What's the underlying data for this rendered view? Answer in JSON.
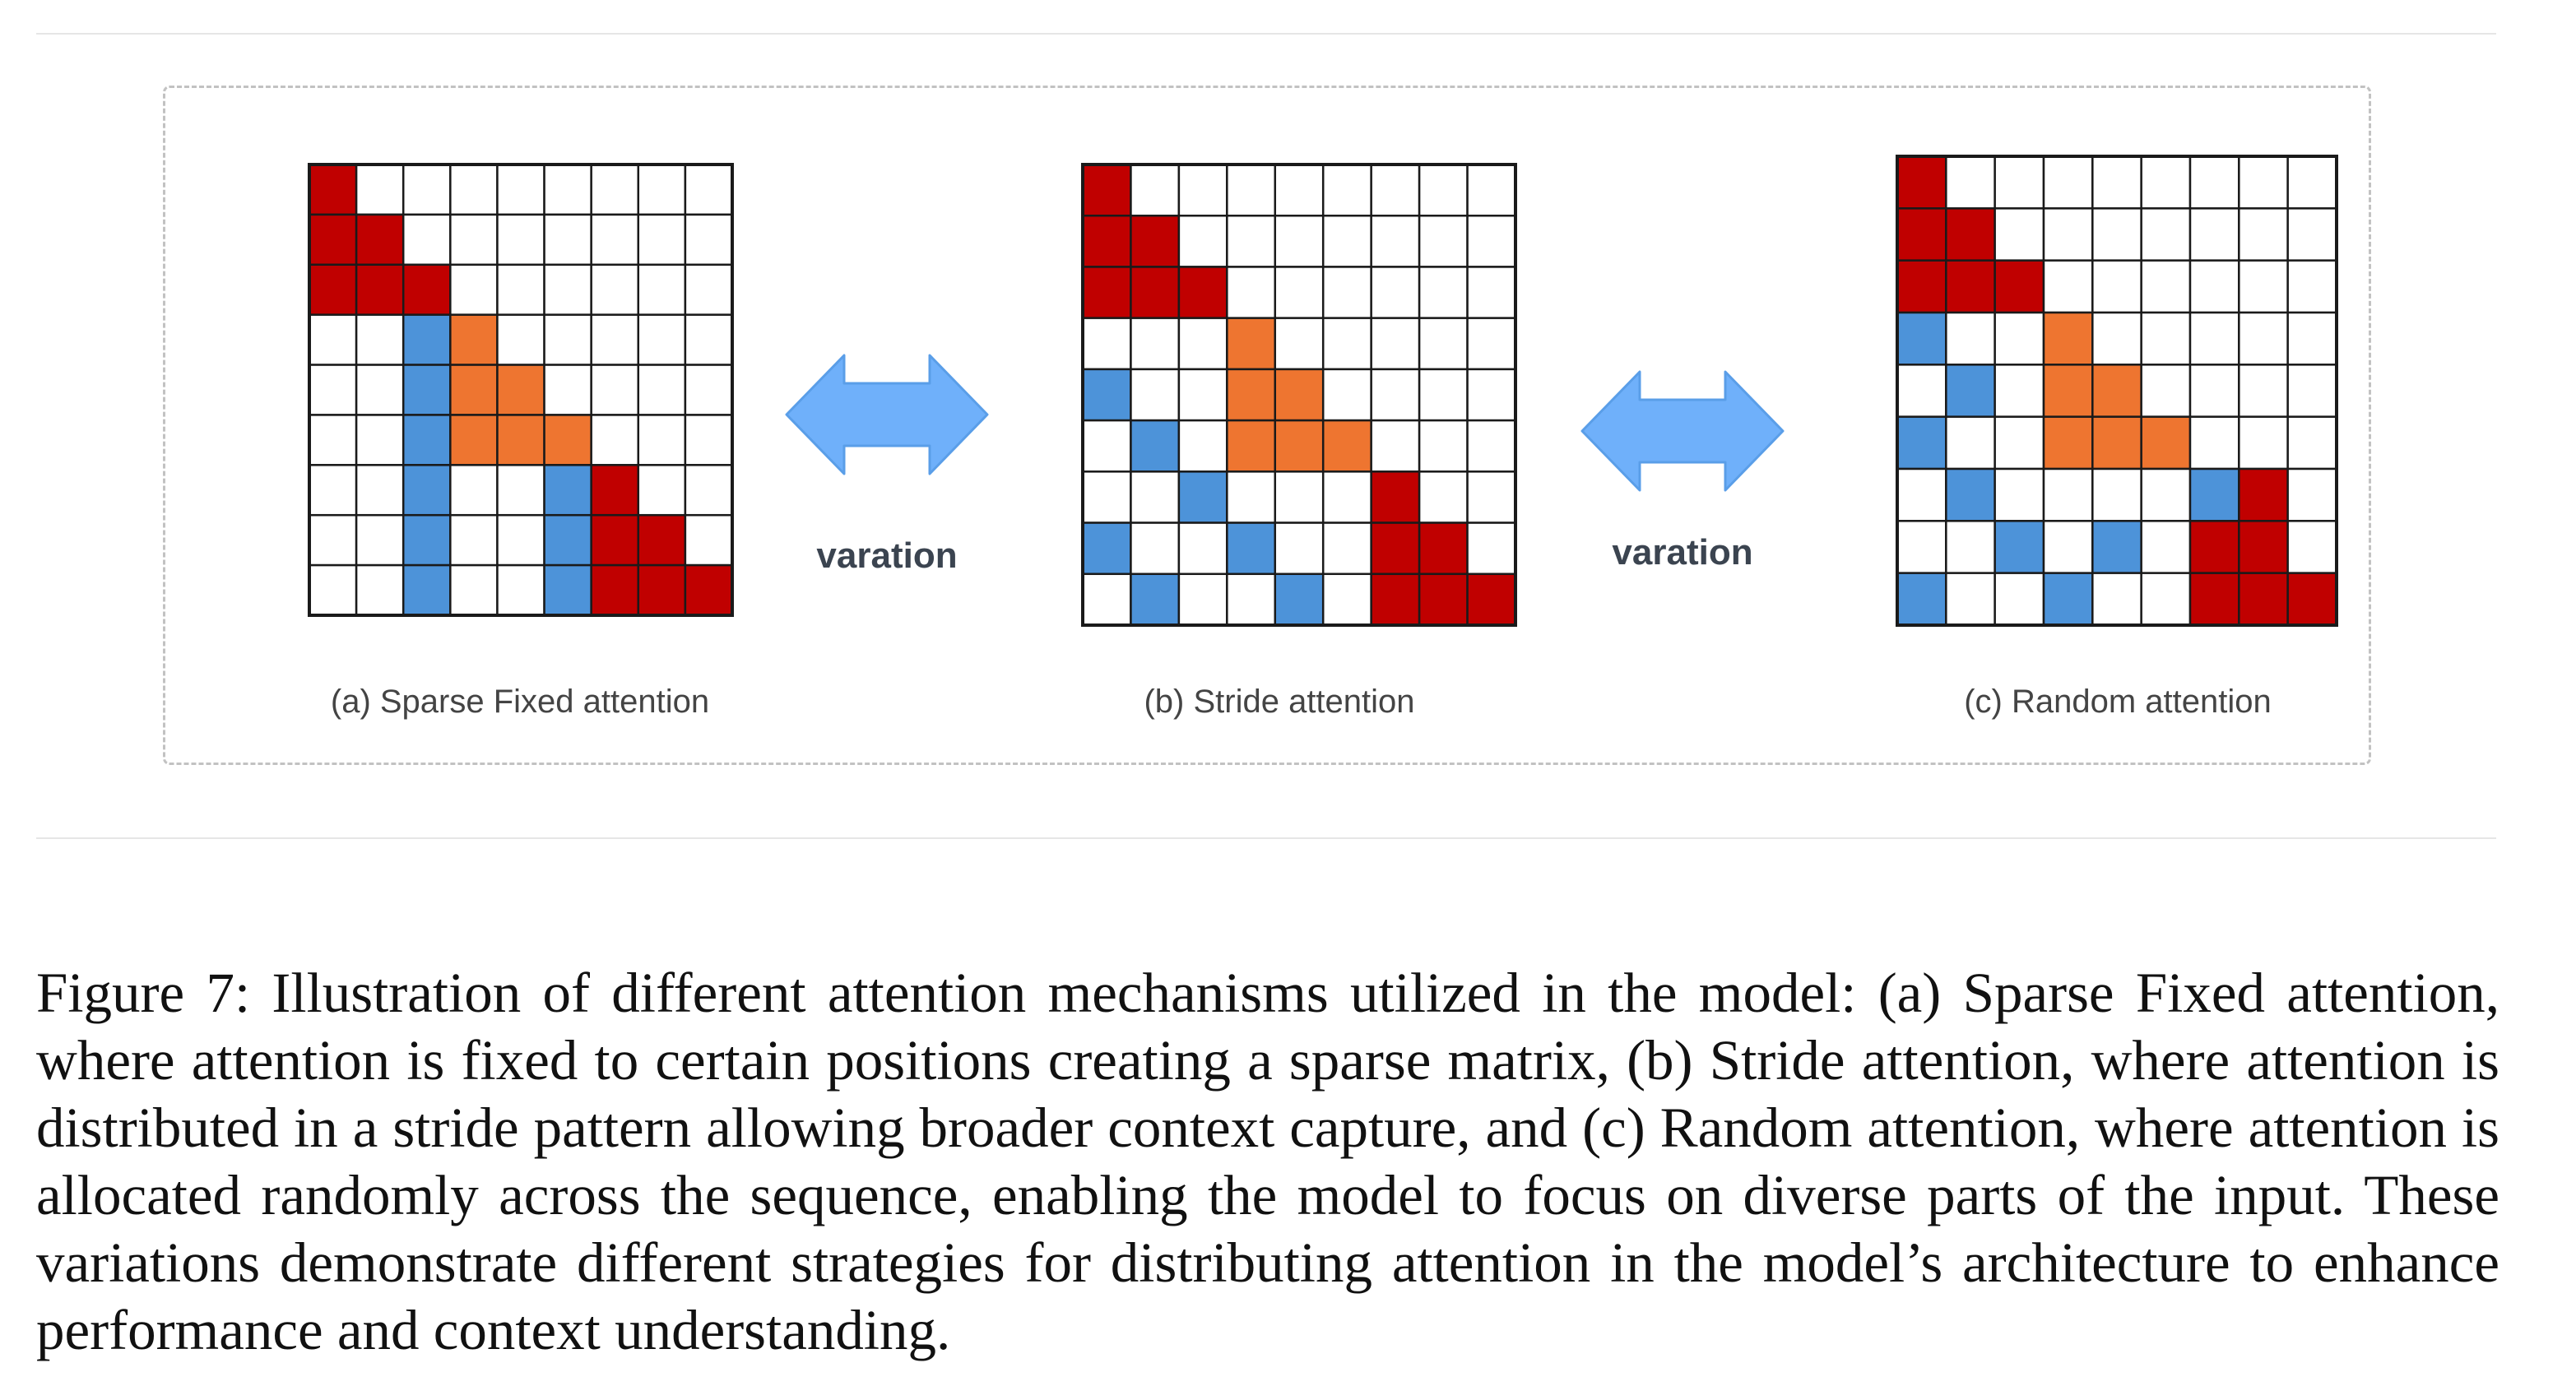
{
  "colors": {
    "red": "#c00000",
    "orange": "#ee7530",
    "blue": "#4d93d9",
    "empty": "#ffffff",
    "grid": "#1a1a1a",
    "arrow": "#6fb0fa",
    "arrow_stroke": "#5a9ee8"
  },
  "icons": [
    "double-arrow-icon"
  ],
  "arrows": [
    {
      "label": "varation"
    },
    {
      "label": "varation"
    }
  ],
  "matrices": [
    {
      "caption": "(a) Sparse Fixed attention",
      "rows": [
        "R........",
        "RR.......",
        "RRR......",
        "..BO.....",
        "..BOO....",
        "..BOOO...",
        "..B..BR..",
        "..B..BRR.",
        "..B..BRRR"
      ]
    },
    {
      "caption": "(b) Stride attention",
      "rows": [
        "R........",
        "RR.......",
        "RRR......",
        "...O.....",
        "B..OO....",
        ".B.OOO...",
        "..B...R..",
        "B..B..RR.",
        ".B..B.RRR"
      ]
    },
    {
      "caption": "(c) Random attention",
      "rows": [
        "R........",
        "RR.......",
        "RRR......",
        "B..O.....",
        ".B.OO....",
        "B..OOO...",
        ".B....BR.",
        "..B.B.RR.",
        "B..B..RRR"
      ]
    }
  ],
  "caption_text": "Figure 7: Illustration of different attention mechanisms utilized in the model: (a) Sparse Fixed attention, where attention is fixed to certain positions creating a sparse matrix, (b) Stride attention, where attention is distributed in a stride pattern allowing broader context capture, and (c) Random attention, where attention is allocated randomly across the sequence, enabling the model to focus on diverse parts of the input. These variations demonstrate different strategies for distributing attention in the model’s architecture to enhance performance and context understanding."
}
